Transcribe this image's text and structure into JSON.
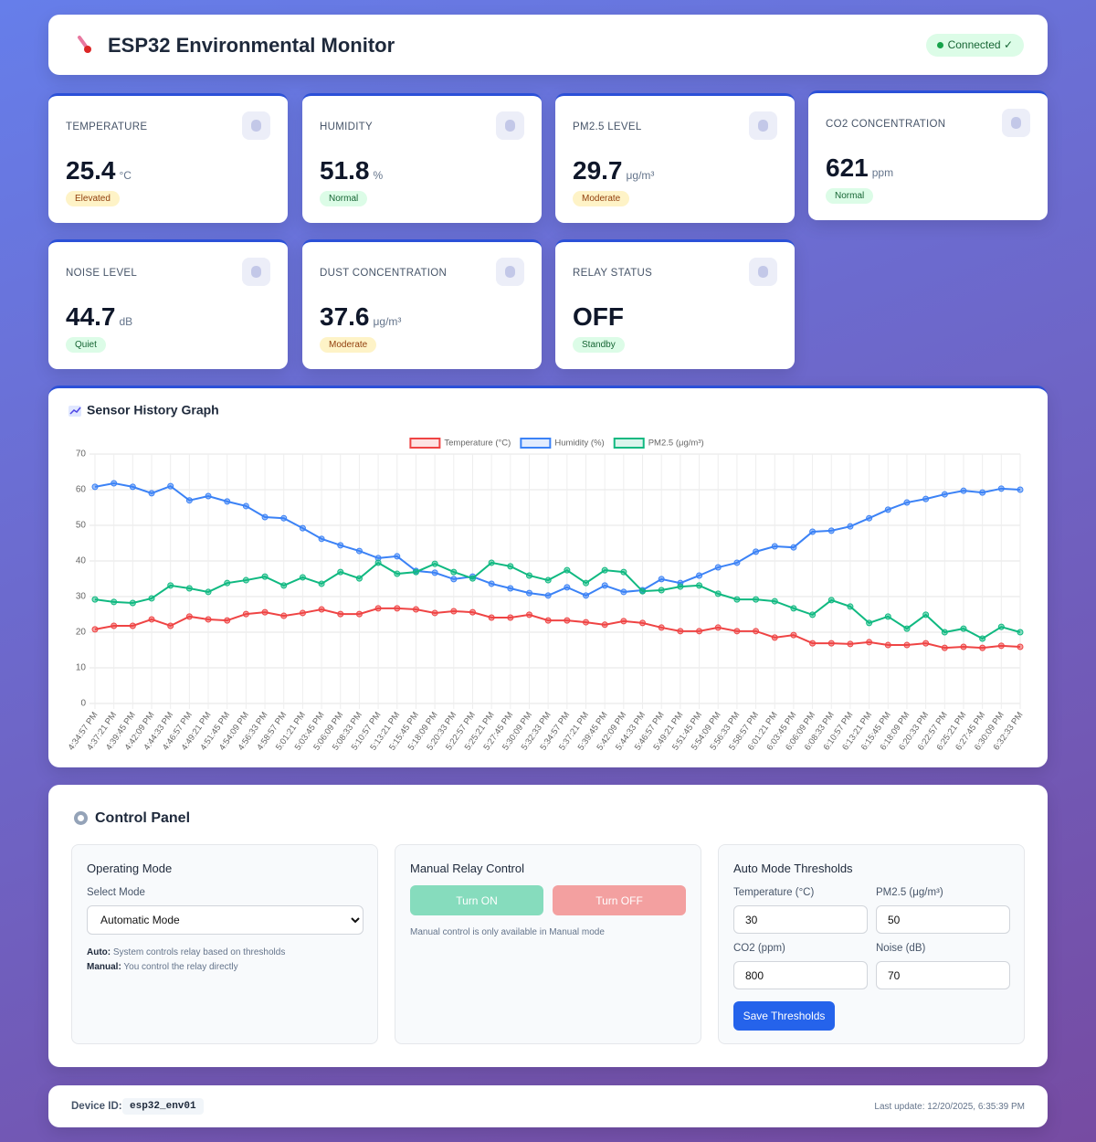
{
  "header": {
    "title": "ESP32 Environmental Monitor",
    "status": "Connected ✓"
  },
  "cards": [
    {
      "label": "TEMPERATURE",
      "value": 25.4,
      "unit": "°C",
      "badge": "Elevated",
      "badge_bg": "#fef3c7",
      "badge_color": "#92400e"
    },
    {
      "label": "HUMIDITY",
      "value": 51.8,
      "unit": "%",
      "badge": "Normal",
      "badge_bg": "#dcfce7",
      "badge_color": "#166534"
    },
    {
      "label": "PM2.5 LEVEL",
      "value": 29.7,
      "unit": "μg/m³",
      "badge": "Moderate",
      "badge_bg": "#fef3c7",
      "badge_color": "#92400e"
    },
    {
      "label": "CO2 CONCENTRATION",
      "value": 621,
      "unit": "ppm",
      "badge": "Normal",
      "badge_bg": "#dcfce7",
      "badge_color": "#166534"
    },
    {
      "label": "NOISE LEVEL",
      "value": 44.7,
      "unit": "dB",
      "badge": "Quiet",
      "badge_bg": "#dcfce7",
      "badge_color": "#166534"
    },
    {
      "label": "DUST CONCENTRATION",
      "value": 37.6,
      "unit": "μg/m³",
      "badge": "Moderate",
      "badge_bg": "#fef3c7",
      "badge_color": "#92400e"
    },
    {
      "label": "RELAY STATUS",
      "value": "OFF",
      "badge": "Standby",
      "badge_bg": "#dcfce7",
      "badge_color": "#166534"
    }
  ],
  "history": {
    "title": "Sensor History Graph"
  },
  "chart_data": {
    "type": "line",
    "categories": [
      "4:34:57 PM",
      "4:37:21 PM",
      "4:39:45 PM",
      "4:42:09 PM",
      "4:44:33 PM",
      "4:46:57 PM",
      "4:49:21 PM",
      "4:51:45 PM",
      "4:54:09 PM",
      "4:56:33 PM",
      "4:58:57 PM",
      "5:01:21 PM",
      "5:03:45 PM",
      "5:06:09 PM",
      "5:08:33 PM",
      "5:10:57 PM",
      "5:13:21 PM",
      "5:15:45 PM",
      "5:18:09 PM",
      "5:20:33 PM",
      "5:22:57 PM",
      "5:25:21 PM",
      "5:27:45 PM",
      "5:30:09 PM",
      "5:32:33 PM",
      "5:34:57 PM",
      "5:37:21 PM",
      "5:39:45 PM",
      "5:42:09 PM",
      "5:44:33 PM",
      "5:46:57 PM",
      "5:49:21 PM",
      "5:51:45 PM",
      "5:54:09 PM",
      "5:56:33 PM",
      "5:58:57 PM",
      "6:01:21 PM",
      "6:03:45 PM",
      "6:06:09 PM",
      "6:08:33 PM",
      "6:10:57 PM",
      "6:13:21 PM",
      "6:15:45 PM",
      "6:18:09 PM",
      "6:20:33 PM",
      "6:22:57 PM",
      "6:25:21 PM",
      "6:27:45 PM",
      "6:30:09 PM",
      "6:32:33 PM"
    ],
    "series": [
      {
        "name": "Temperature (°C)",
        "color": "#ef4444",
        "values": [
          20.8,
          21.8,
          21.8,
          23.6,
          21.8,
          24.4,
          23.6,
          23.3,
          25.1,
          25.6,
          24.6,
          25.4,
          26.4,
          25.1,
          25.1,
          26.7,
          26.7,
          26.4,
          25.4,
          25.9,
          25.6,
          24.1,
          24.1,
          24.9,
          23.3,
          23.3,
          22.8,
          22.1,
          23.1,
          22.6,
          21.3,
          20.3,
          20.3,
          21.3,
          20.3,
          20.3,
          18.5,
          19.2,
          16.9,
          16.9,
          16.7,
          17.2,
          16.4,
          16.4,
          16.9,
          15.6,
          15.9,
          15.6,
          16.2,
          15.9
        ]
      },
      {
        "name": "Humidity (%)",
        "color": "#3b82f6",
        "values": [
          60.8,
          61.8,
          60.8,
          59,
          61,
          57,
          58.2,
          56.7,
          55.4,
          52.3,
          52,
          49.2,
          46.2,
          44.4,
          42.8,
          40.8,
          41.3,
          37.2,
          36.7,
          34.9,
          35.6,
          33.6,
          32.3,
          31,
          30.3,
          32.6,
          30.3,
          33.1,
          31.3,
          31.8,
          34.9,
          33.8,
          35.9,
          38.2,
          39.5,
          42.6,
          44.1,
          43.8,
          48.2,
          48.5,
          49.7,
          52,
          54.4,
          56.4,
          57.4,
          58.7,
          59.7,
          59.2,
          60.3,
          60
        ]
      },
      {
        "name": "PM2.5 (μg/m³)",
        "color": "#10b981",
        "values": [
          29.2,
          28.5,
          28.2,
          29.5,
          33.1,
          32.3,
          31.3,
          33.8,
          34.6,
          35.6,
          33.1,
          35.4,
          33.6,
          36.9,
          35.1,
          39.5,
          36.4,
          36.9,
          39.2,
          36.9,
          35.1,
          39.5,
          38.5,
          35.9,
          34.6,
          37.4,
          33.8,
          37.4,
          36.9,
          31.5,
          31.8,
          32.8,
          33.1,
          30.8,
          29.2,
          29.2,
          28.7,
          26.7,
          24.9,
          29,
          27.2,
          22.6,
          24.4,
          21,
          24.9,
          20,
          21,
          18.2,
          21.5,
          20
        ]
      }
    ],
    "ylim": [
      0,
      70
    ],
    "yticks": [
      0,
      10,
      20,
      30,
      40,
      50,
      60,
      70
    ],
    "grid": true,
    "legend": "top"
  },
  "control": {
    "title": "Control Panel",
    "mode": {
      "title": "Operating Mode",
      "select_label": "Select Mode",
      "selected": "Automatic Mode",
      "notes": [
        {
          "term": "Auto:",
          "text": "System controls relay based on thresholds"
        },
        {
          "term": "Manual:",
          "text": "You control the relay directly"
        }
      ]
    },
    "relay": {
      "title": "Manual Relay Control",
      "on": "Turn ON",
      "off": "Turn OFF",
      "note": "Manual control is only available in Manual mode"
    },
    "thresholds": {
      "title": "Auto Mode Thresholds",
      "fields": [
        {
          "label": "Temperature (°C)",
          "value": 30
        },
        {
          "label": "PM2.5 (μg/m³)",
          "value": 50
        },
        {
          "label": "CO2 (ppm)",
          "value": 800
        },
        {
          "label": "Noise (dB)",
          "value": 70
        }
      ],
      "save": "Save Thresholds"
    }
  },
  "footer": {
    "device_label": "Device ID:",
    "device_id": "esp32_env01",
    "last_update": "Last update: 12/20/2025, 6:35:39 PM"
  }
}
